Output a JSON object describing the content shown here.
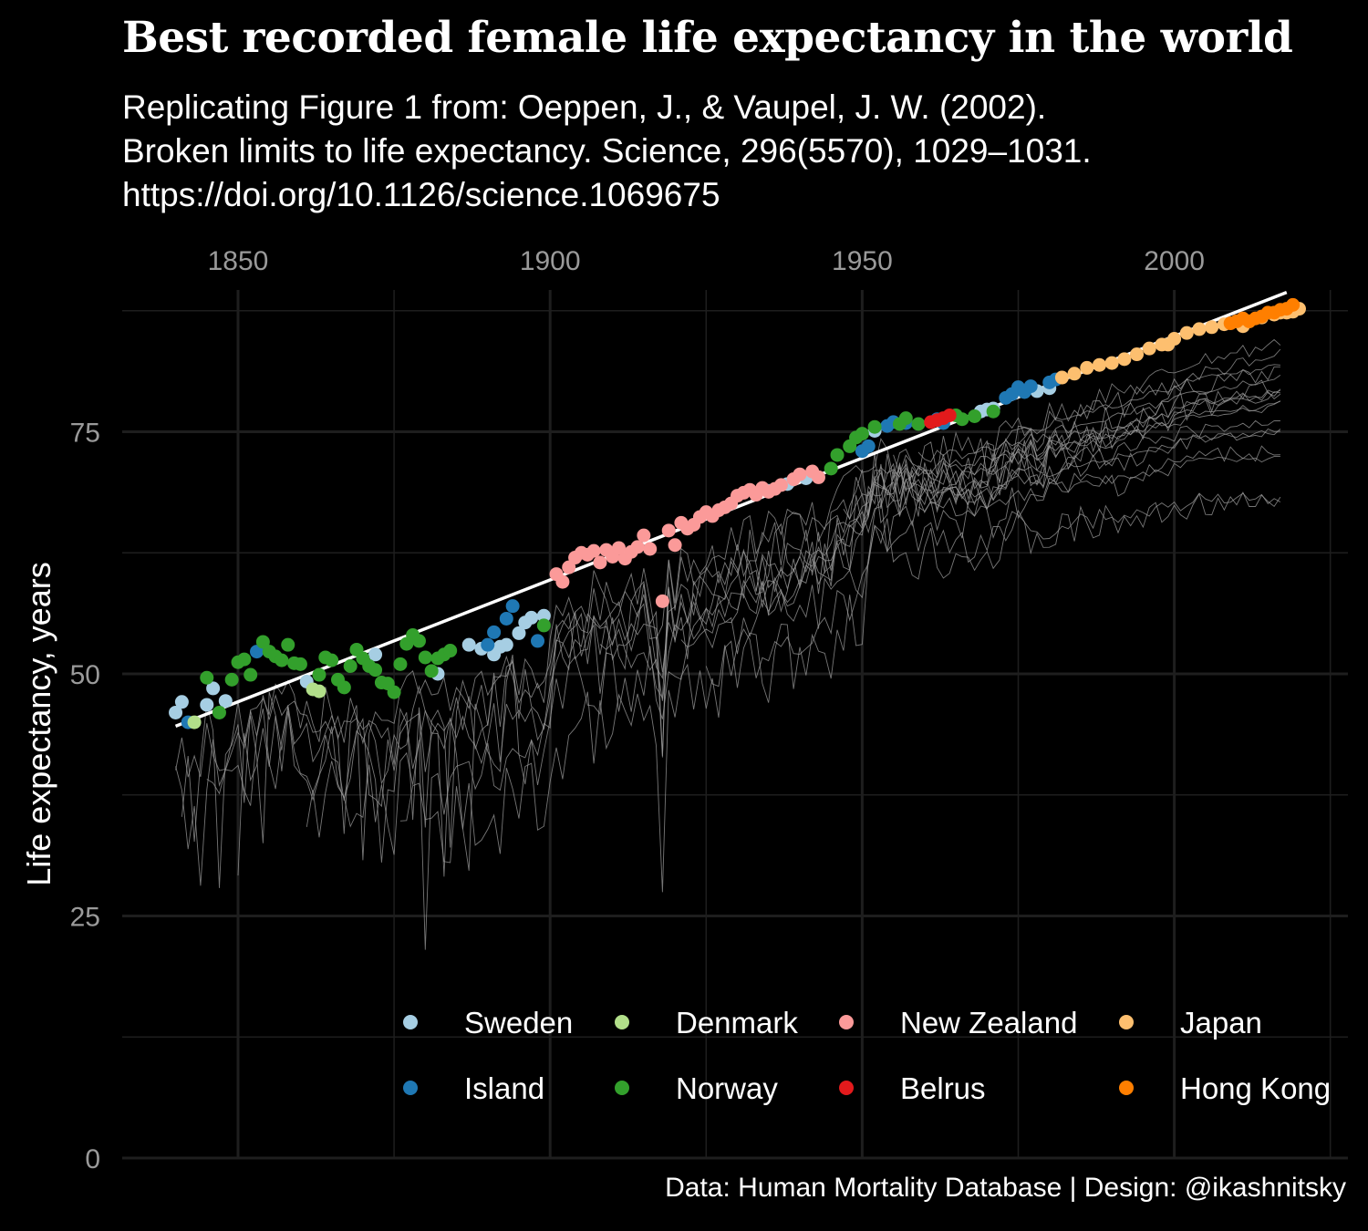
{
  "title": "Best recorded female life expectancy in the world",
  "subtitle_lines": [
    "Replicating Figure 1 from: Oeppen, J., & Vaupel, J. W. (2002).",
    "Broken limits to life expectancy. Science, 296(5570), 1029–1031.",
    "https://doi.org/10.1126/science.1069675"
  ],
  "caption": "Data: Human Mortality Database | Design: @ikashnitsky",
  "colors": {
    "background": "#000000",
    "grid": "#1e1e1e",
    "tick_text": "#9a9a9a",
    "country_lines": "#9e9e9e",
    "trend_line": "#ffffff"
  },
  "chart_data": {
    "type": "scatter",
    "title": "Best recorded female life expectancy in the world",
    "xlabel": "",
    "ylabel": "Life expectancy, years",
    "x_axis_position": "top",
    "xlim": [
      1840,
      2020
    ],
    "ylim": [
      0,
      90
    ],
    "x_ticks": [
      1850,
      1900,
      1950,
      2000
    ],
    "y_ticks": [
      0,
      25,
      50,
      75
    ],
    "grid": true,
    "legend_position": "bottom-right",
    "legend": [
      {
        "name": "Sweden",
        "color": "#a6cee3"
      },
      {
        "name": "Island",
        "color": "#1f78b4"
      },
      {
        "name": "Denmark",
        "color": "#b2df8a"
      },
      {
        "name": "Norway",
        "color": "#33a02c"
      },
      {
        "name": "New Zealand",
        "color": "#fb9a99"
      },
      {
        "name": "Belrus",
        "color": "#e31a1c"
      },
      {
        "name": "Japan",
        "color": "#fdbf6f"
      },
      {
        "name": "Hong Kong",
        "color": "#ff7f00"
      }
    ],
    "trend_line": {
      "x": [
        1840,
        2018
      ],
      "y": [
        44.6,
        89.4
      ]
    },
    "series": [
      {
        "name": "Sweden",
        "points": [
          [
            1840,
            46.0
          ],
          [
            1841,
            47.1
          ],
          [
            1845,
            46.8
          ],
          [
            1846,
            48.5
          ],
          [
            1848,
            47.2
          ],
          [
            1861,
            49.2
          ],
          [
            1872,
            52.0
          ],
          [
            1882,
            50.0
          ],
          [
            1887,
            53.0
          ],
          [
            1889,
            52.6
          ],
          [
            1891,
            52.0
          ],
          [
            1892,
            52.8
          ],
          [
            1893,
            53.0
          ],
          [
            1895,
            54.2
          ],
          [
            1896,
            55.3
          ],
          [
            1897,
            55.8
          ],
          [
            1899,
            56.0
          ],
          [
            1935,
            68.9
          ],
          [
            1938,
            69.6
          ],
          [
            1941,
            70.2
          ],
          [
            1952,
            75.1
          ],
          [
            1969,
            77.1
          ],
          [
            1970,
            77.3
          ],
          [
            1971,
            77.4
          ],
          [
            1978,
            79.2
          ],
          [
            1980,
            79.5
          ]
        ]
      },
      {
        "name": "Island",
        "points": [
          [
            1842,
            45.0
          ],
          [
            1853,
            52.3
          ],
          [
            1890,
            53.0
          ],
          [
            1891,
            54.3
          ],
          [
            1893,
            55.7
          ],
          [
            1894,
            57.0
          ],
          [
            1898,
            53.4
          ],
          [
            1950,
            73.0
          ],
          [
            1951,
            73.5
          ],
          [
            1954,
            75.6
          ],
          [
            1955,
            76.0
          ],
          [
            1957,
            75.9
          ],
          [
            1962,
            76.3
          ],
          [
            1963,
            75.9
          ],
          [
            1973,
            78.5
          ],
          [
            1974,
            78.9
          ],
          [
            1975,
            79.6
          ],
          [
            1976,
            79.1
          ],
          [
            1977,
            79.7
          ],
          [
            1980,
            80.1
          ],
          [
            1981,
            80.4
          ]
        ]
      },
      {
        "name": "Denmark",
        "points": [
          [
            1843,
            45.0
          ],
          [
            1862,
            48.4
          ],
          [
            1863,
            48.2
          ]
        ]
      },
      {
        "name": "Norway",
        "points": [
          [
            1845,
            49.6
          ],
          [
            1847,
            46.0
          ],
          [
            1849,
            49.4
          ],
          [
            1850,
            51.2
          ],
          [
            1851,
            51.5
          ],
          [
            1852,
            49.9
          ],
          [
            1854,
            53.3
          ],
          [
            1855,
            52.3
          ],
          [
            1856,
            51.8
          ],
          [
            1857,
            51.4
          ],
          [
            1858,
            53.0
          ],
          [
            1859,
            51.1
          ],
          [
            1860,
            51.0
          ],
          [
            1863,
            49.9
          ],
          [
            1864,
            51.7
          ],
          [
            1865,
            51.4
          ],
          [
            1866,
            49.4
          ],
          [
            1867,
            48.6
          ],
          [
            1868,
            50.8
          ],
          [
            1869,
            52.5
          ],
          [
            1870,
            51.6
          ],
          [
            1871,
            50.8
          ],
          [
            1872,
            50.4
          ],
          [
            1873,
            49.1
          ],
          [
            1874,
            49.0
          ],
          [
            1875,
            48.1
          ],
          [
            1876,
            51.0
          ],
          [
            1877,
            53.1
          ],
          [
            1878,
            54.0
          ],
          [
            1879,
            53.4
          ],
          [
            1880,
            51.7
          ],
          [
            1881,
            50.3
          ],
          [
            1882,
            51.6
          ],
          [
            1883,
            52.0
          ],
          [
            1884,
            52.4
          ],
          [
            1899,
            55.0
          ],
          [
            1945,
            71.2
          ],
          [
            1946,
            72.6
          ],
          [
            1948,
            73.5
          ],
          [
            1949,
            74.4
          ],
          [
            1950,
            74.8
          ],
          [
            1952,
            75.5
          ],
          [
            1956,
            75.8
          ],
          [
            1957,
            76.4
          ],
          [
            1959,
            75.8
          ],
          [
            1965,
            76.7
          ],
          [
            1966,
            76.3
          ],
          [
            1968,
            76.6
          ],
          [
            1971,
            77.1
          ]
        ]
      },
      {
        "name": "New Zealand",
        "points": [
          [
            1901,
            60.3
          ],
          [
            1902,
            59.5
          ],
          [
            1903,
            61.0
          ],
          [
            1904,
            62.0
          ],
          [
            1905,
            62.5
          ],
          [
            1906,
            62.3
          ],
          [
            1907,
            62.7
          ],
          [
            1908,
            61.5
          ],
          [
            1909,
            62.8
          ],
          [
            1910,
            62.1
          ],
          [
            1911,
            63.0
          ],
          [
            1912,
            61.9
          ],
          [
            1913,
            62.6
          ],
          [
            1914,
            63.1
          ],
          [
            1915,
            64.3
          ],
          [
            1916,
            62.9
          ],
          [
            1918,
            57.5
          ],
          [
            1919,
            64.8
          ],
          [
            1920,
            63.3
          ],
          [
            1921,
            65.6
          ],
          [
            1922,
            65.0
          ],
          [
            1923,
            65.4
          ],
          [
            1924,
            66.2
          ],
          [
            1925,
            66.7
          ],
          [
            1926,
            66.3
          ],
          [
            1927,
            66.9
          ],
          [
            1928,
            67.2
          ],
          [
            1929,
            67.6
          ],
          [
            1930,
            68.4
          ],
          [
            1931,
            68.7
          ],
          [
            1932,
            69.0
          ],
          [
            1933,
            68.5
          ],
          [
            1934,
            69.2
          ],
          [
            1935,
            68.8
          ],
          [
            1936,
            69.1
          ],
          [
            1937,
            69.5
          ],
          [
            1939,
            70.1
          ],
          [
            1940,
            70.6
          ],
          [
            1942,
            70.9
          ],
          [
            1943,
            70.3
          ]
        ]
      },
      {
        "name": "Belrus",
        "points": [
          [
            1961,
            76.0
          ],
          [
            1962,
            76.2
          ],
          [
            1963,
            76.4
          ],
          [
            1964,
            76.7
          ]
        ]
      },
      {
        "name": "Japan",
        "points": [
          [
            1982,
            80.6
          ],
          [
            1984,
            81.0
          ],
          [
            1986,
            81.6
          ],
          [
            1988,
            81.9
          ],
          [
            1990,
            82.1
          ],
          [
            1992,
            82.5
          ],
          [
            1994,
            83.0
          ],
          [
            1996,
            83.6
          ],
          [
            1998,
            84.0
          ],
          [
            1999,
            84.0
          ],
          [
            2000,
            84.6
          ],
          [
            2002,
            85.2
          ],
          [
            2004,
            85.6
          ],
          [
            2006,
            85.8
          ],
          [
            2008,
            86.1
          ],
          [
            2010,
            86.4
          ],
          [
            2011,
            85.9
          ],
          [
            2012,
            86.4
          ],
          [
            2014,
            86.8
          ],
          [
            2016,
            87.1
          ],
          [
            2017,
            87.3
          ],
          [
            2018,
            87.3
          ],
          [
            2019,
            87.4
          ],
          [
            2020,
            87.7
          ]
        ]
      },
      {
        "name": "Hong Kong",
        "points": [
          [
            2009,
            86.2
          ],
          [
            2010,
            86.4
          ],
          [
            2011,
            86.7
          ],
          [
            2012,
            86.4
          ],
          [
            2013,
            86.7
          ],
          [
            2014,
            86.9
          ],
          [
            2015,
            87.3
          ],
          [
            2016,
            87.3
          ],
          [
            2017,
            87.6
          ],
          [
            2018,
            87.7
          ],
          [
            2019,
            88.1
          ]
        ]
      }
    ]
  }
}
